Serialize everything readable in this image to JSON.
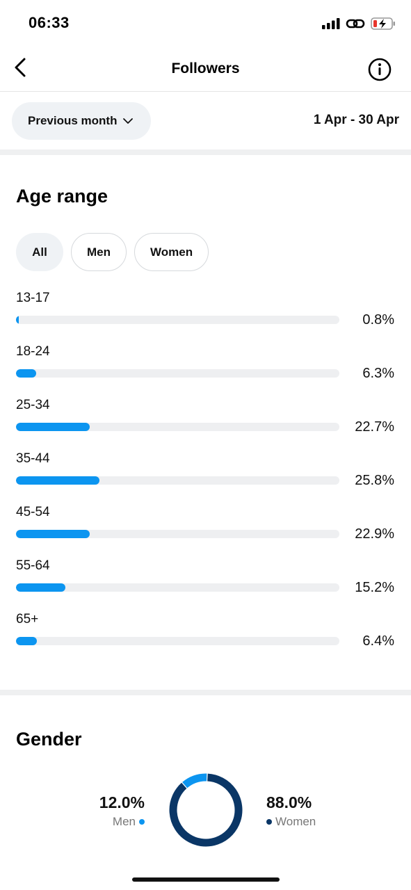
{
  "status_bar": {
    "time": "06:33"
  },
  "header": {
    "title": "Followers",
    "back_icon": "chevron-left-icon",
    "info_icon": "info-icon"
  },
  "filter": {
    "period_label": "Previous month",
    "date_range": "1 Apr - 30 Apr"
  },
  "age_section": {
    "title": "Age range",
    "tabs": [
      {
        "label": "All",
        "active": true
      },
      {
        "label": "Men",
        "active": false
      },
      {
        "label": "Women",
        "active": false
      }
    ],
    "rows": [
      {
        "label": "13-17",
        "percent_text": "0.8%",
        "value": 0.8
      },
      {
        "label": "18-24",
        "percent_text": "6.3%",
        "value": 6.3
      },
      {
        "label": "25-34",
        "percent_text": "22.7%",
        "value": 22.7
      },
      {
        "label": "35-44",
        "percent_text": "25.8%",
        "value": 25.8
      },
      {
        "label": "45-54",
        "percent_text": "22.9%",
        "value": 22.9
      },
      {
        "label": "55-64",
        "percent_text": "15.2%",
        "value": 15.2
      },
      {
        "label": "65+",
        "percent_text": "6.4%",
        "value": 6.4
      }
    ]
  },
  "gender_section": {
    "title": "Gender",
    "men": {
      "percent_text": "12.0%",
      "label": "Men",
      "value": 12.0
    },
    "women": {
      "percent_text": "88.0%",
      "label": "Women",
      "value": 88.0
    }
  },
  "colors": {
    "men": "#0c95f0",
    "women": "#0a3666",
    "bar_track": "#eeeff1"
  },
  "chart_data": [
    {
      "type": "bar",
      "title": "Age range",
      "categories": [
        "13-17",
        "18-24",
        "25-34",
        "35-44",
        "45-54",
        "55-64",
        "65+"
      ],
      "values": [
        0.8,
        6.3,
        22.7,
        25.8,
        22.9,
        15.2,
        6.4
      ]
    },
    {
      "type": "pie",
      "title": "Gender",
      "categories": [
        "Men",
        "Women"
      ],
      "values": [
        12.0,
        88.0
      ]
    }
  ]
}
